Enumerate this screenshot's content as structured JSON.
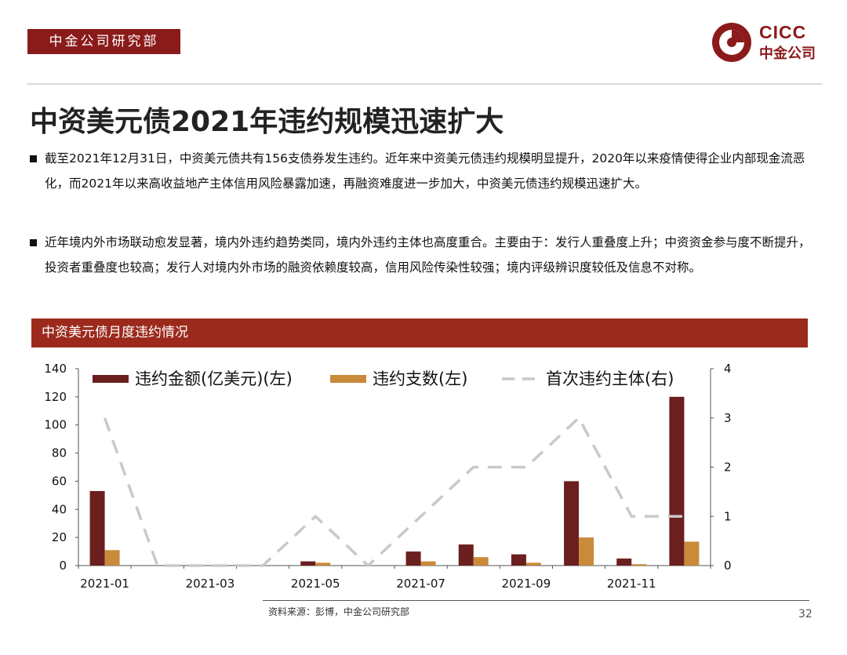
{
  "header": {
    "dept": "中金公司研究部",
    "logo_en": "CICC",
    "logo_cn": "中金公司"
  },
  "title": "中资美元债2021年违约规模迅速扩大",
  "bullets": [
    "截至2021年12月31日，中资美元债共有156支债券发生违约。近年来中资美元债违约规模明显提升，2020年以来疫情使得企业内部现金流恶化，而2021年以来高收益地产主体信用风险暴露加速，再融资难度进一步加大，中资美元债违约规模迅速扩大。",
    "近年境内外市场联动愈发显著，境内外违约趋势类同，境内外违约主体也高度重合。主要由于：发行人重叠度上升；中资资金参与度不断提升，投资者重叠度也较高；发行人对境内外市场的融资依赖度较高，信用风险传染性较强；境内评级辨识度较低及信息不对称。"
  ],
  "chart_title": "中资美元债月度违约情况",
  "colors": {
    "brand": "#8b1a1a",
    "title_bar": "#9b2a1d",
    "amount": "#6b1f1f",
    "count": "#c98a3a",
    "first": "#c9c9c9"
  },
  "chart_data": {
    "type": "bar",
    "categories": [
      "2021-01",
      "2021-02",
      "2021-03",
      "2021-04",
      "2021-05",
      "2021-06",
      "2021-07",
      "2021-08",
      "2021-09",
      "2021-10",
      "2021-11",
      "2021-12"
    ],
    "x_tick_labels": [
      "2021-01",
      "2021-03",
      "2021-05",
      "2021-07",
      "2021-09",
      "2021-11"
    ],
    "series": [
      {
        "name": "违约金额(亿美元)(左)",
        "axis": "left",
        "kind": "bar",
        "color": "#6b1f1f",
        "values": [
          53,
          0,
          0,
          0,
          3,
          0,
          10,
          15,
          8,
          60,
          5,
          120
        ]
      },
      {
        "name": "违约支数(左)",
        "axis": "left",
        "kind": "bar",
        "color": "#c98a3a",
        "values": [
          11,
          0,
          0,
          0,
          2,
          0,
          3,
          6,
          2,
          20,
          1,
          17
        ]
      },
      {
        "name": "首次违约主体(右)",
        "axis": "right",
        "kind": "line",
        "style": "dashed",
        "color": "#c9c9c9",
        "values": [
          3,
          0,
          0,
          0,
          1,
          0,
          1,
          2,
          2,
          3,
          1,
          1
        ]
      }
    ],
    "y_left": {
      "min": 0,
      "max": 140,
      "ticks": [
        0,
        20,
        40,
        60,
        80,
        100,
        120,
        140
      ]
    },
    "y_right": {
      "min": 0,
      "max": 4,
      "ticks": [
        0,
        1,
        2,
        3,
        4
      ]
    },
    "grid": false,
    "legend": "top"
  },
  "footer": {
    "source": "资料来源：彭博，中金公司研究部",
    "page": "32"
  }
}
